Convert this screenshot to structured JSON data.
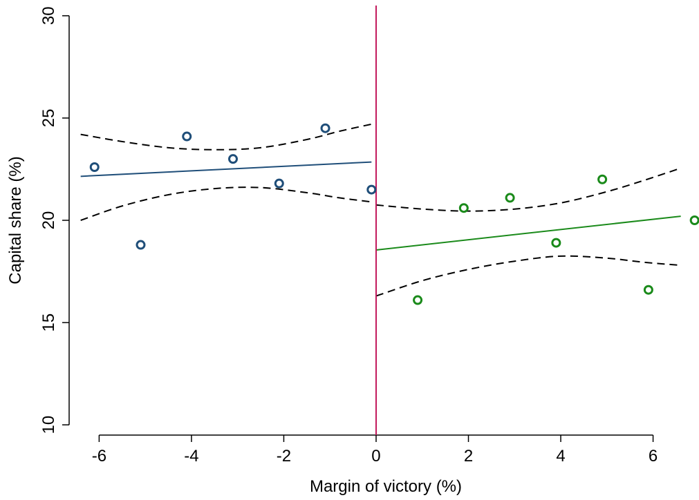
{
  "chart_data": {
    "type": "scatter",
    "xlabel": "Margin of victory (%)",
    "ylabel": "Capital share (%)",
    "xlim": [
      -6.65,
      6.95
    ],
    "ylim": [
      9.5,
      30.5
    ],
    "xticks": [
      -6,
      -4,
      -2,
      0,
      2,
      4,
      6
    ],
    "xtick_labels": [
      "-6",
      "-4",
      "-2",
      "0",
      "2",
      "4",
      "6"
    ],
    "yticks": [
      10,
      15,
      20,
      25,
      30
    ],
    "ytick_labels": [
      "10",
      "15",
      "20",
      "25",
      "30"
    ],
    "grid": false,
    "threshold_x": 0,
    "colors": {
      "left": "#1f4e79",
      "right": "#1a8a1a",
      "threshold": "#c2185b",
      "ci": "#000000"
    },
    "series": [
      {
        "side": "left",
        "points": [
          {
            "x": -6.1,
            "y": 22.6
          },
          {
            "x": -5.1,
            "y": 18.8
          },
          {
            "x": -4.1,
            "y": 24.1
          },
          {
            "x": -3.1,
            "y": 23.0
          },
          {
            "x": -2.1,
            "y": 21.8
          },
          {
            "x": -1.1,
            "y": 24.5
          },
          {
            "x": -0.1,
            "y": 21.5
          }
        ],
        "fit": [
          {
            "x": -6.4,
            "y": 22.15
          },
          {
            "x": -0.1,
            "y": 22.85
          }
        ],
        "ci_upper": [
          {
            "x": -6.4,
            "y": 24.2
          },
          {
            "x": -5.5,
            "y": 23.85
          },
          {
            "x": -4.5,
            "y": 23.55
          },
          {
            "x": -3.5,
            "y": 23.45
          },
          {
            "x": -2.5,
            "y": 23.55
          },
          {
            "x": -1.5,
            "y": 23.95
          },
          {
            "x": -0.8,
            "y": 24.35
          },
          {
            "x": -0.1,
            "y": 24.7
          }
        ],
        "ci_lower": [
          {
            "x": -6.4,
            "y": 20.0
          },
          {
            "x": -5.5,
            "y": 20.7
          },
          {
            "x": -4.5,
            "y": 21.25
          },
          {
            "x": -3.5,
            "y": 21.55
          },
          {
            "x": -2.5,
            "y": 21.6
          },
          {
            "x": -1.5,
            "y": 21.35
          },
          {
            "x": -0.8,
            "y": 21.1
          },
          {
            "x": -0.1,
            "y": 20.9
          }
        ]
      },
      {
        "side": "right",
        "points": [
          {
            "x": 0.9,
            "y": 16.1
          },
          {
            "x": 1.9,
            "y": 20.6
          },
          {
            "x": 2.9,
            "y": 21.1
          },
          {
            "x": 3.9,
            "y": 18.9
          },
          {
            "x": 4.9,
            "y": 22.0
          },
          {
            "x": 5.9,
            "y": 16.6
          },
          {
            "x": 6.9,
            "y": 20.0
          }
        ],
        "fit": [
          {
            "x": 0.0,
            "y": 18.55
          },
          {
            "x": 6.6,
            "y": 20.2
          }
        ],
        "ci_upper": [
          {
            "x": 0.0,
            "y": 20.75
          },
          {
            "x": 1.0,
            "y": 20.55
          },
          {
            "x": 2.0,
            "y": 20.45
          },
          {
            "x": 3.0,
            "y": 20.55
          },
          {
            "x": 4.0,
            "y": 20.85
          },
          {
            "x": 5.0,
            "y": 21.4
          },
          {
            "x": 5.8,
            "y": 21.95
          },
          {
            "x": 6.6,
            "y": 22.55
          }
        ],
        "ci_lower": [
          {
            "x": 0.0,
            "y": 16.3
          },
          {
            "x": 1.0,
            "y": 17.05
          },
          {
            "x": 2.0,
            "y": 17.6
          },
          {
            "x": 3.0,
            "y": 18.0
          },
          {
            "x": 4.0,
            "y": 18.25
          },
          {
            "x": 5.0,
            "y": 18.15
          },
          {
            "x": 5.8,
            "y": 17.95
          },
          {
            "x": 6.6,
            "y": 17.8
          }
        ]
      }
    ]
  }
}
